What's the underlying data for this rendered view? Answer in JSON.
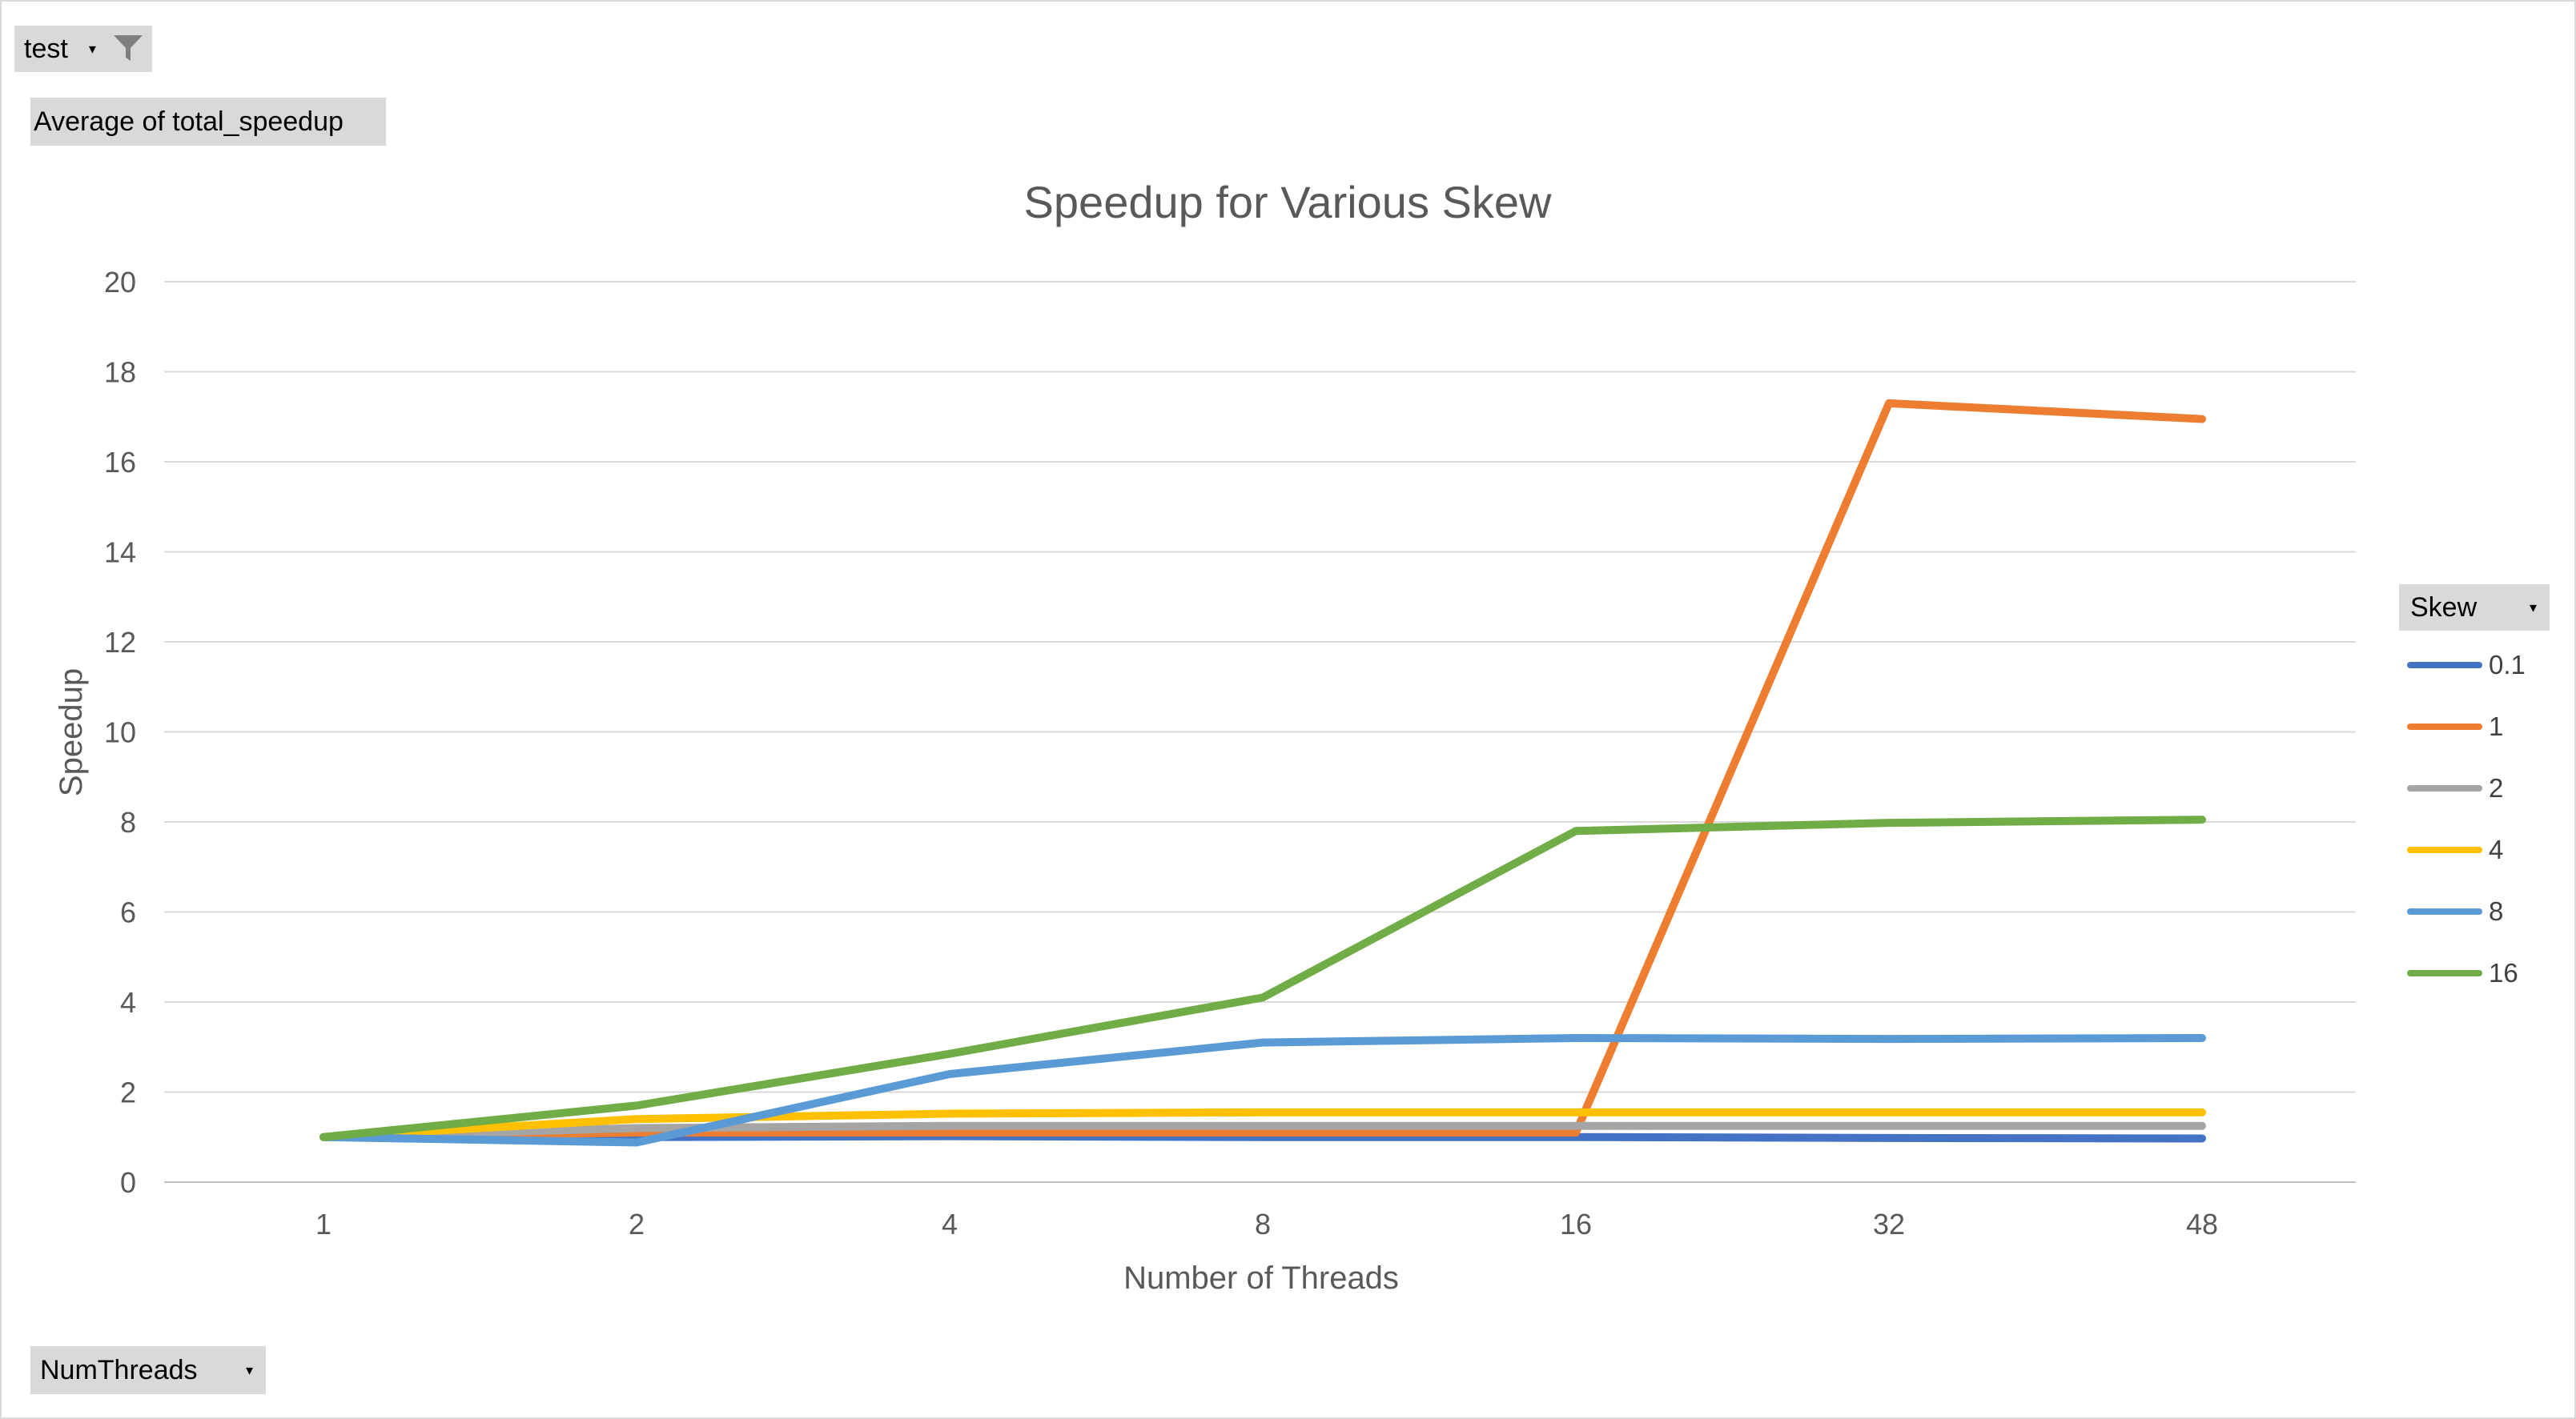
{
  "pivot": {
    "filter_field": "test",
    "value_field": "Average of total_speedup",
    "axis_field": "NumThreads",
    "legend_field": "Skew"
  },
  "icons": {
    "filter": "funnel-icon",
    "dropdown": "dropdown-arrow-icon"
  },
  "chart_data": {
    "type": "line",
    "title": "Speedup for Various Skew",
    "xlabel": "Number of Threads",
    "ylabel": "Speedup",
    "categories": [
      "1",
      "2",
      "4",
      "8",
      "16",
      "32",
      "48"
    ],
    "ylim": [
      0,
      20
    ],
    "yticks": [
      0,
      2,
      4,
      6,
      8,
      10,
      12,
      14,
      16,
      18,
      20
    ],
    "grid": true,
    "legend_position": "right",
    "series": [
      {
        "name": "0.1",
        "color": "#4472C4",
        "values": [
          1.0,
          1.0,
          1.02,
          1.0,
          1.0,
          0.98,
          0.97
        ]
      },
      {
        "name": "1",
        "color": "#ED7D31",
        "values": [
          1.0,
          1.1,
          1.1,
          1.1,
          1.1,
          17.3,
          16.95
        ]
      },
      {
        "name": "2",
        "color": "#A5A5A5",
        "values": [
          1.0,
          1.2,
          1.25,
          1.25,
          1.25,
          1.25,
          1.25
        ]
      },
      {
        "name": "4",
        "color": "#FFC000",
        "values": [
          1.0,
          1.4,
          1.52,
          1.55,
          1.55,
          1.55,
          1.55
        ]
      },
      {
        "name": "8",
        "color": "#5B9BD5",
        "values": [
          1.0,
          0.88,
          2.4,
          3.1,
          3.2,
          3.18,
          3.2
        ]
      },
      {
        "name": "16",
        "color": "#70AD47",
        "values": [
          1.0,
          1.7,
          2.85,
          4.1,
          7.8,
          7.98,
          8.05
        ]
      }
    ]
  }
}
